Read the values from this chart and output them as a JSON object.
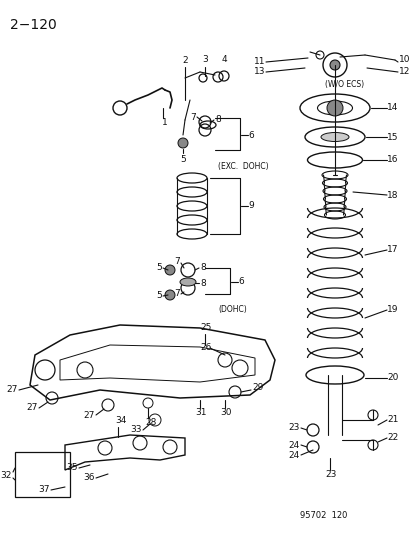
{
  "title": "2−120",
  "footer": "95702  120",
  "bg_color": "#f5f5f0",
  "text_color": "#1a1a1a",
  "title_fontsize": 10,
  "label_fontsize": 6.5,
  "wo_ecs": "(W/O ECS)",
  "exc_dohc": "(EXC.  DOHC)",
  "dohc": "(DOHC)"
}
